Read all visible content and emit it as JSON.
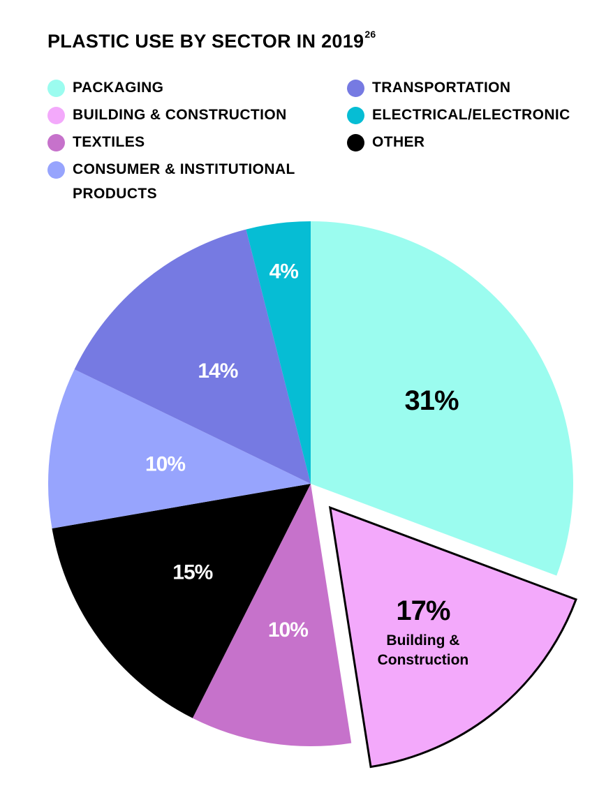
{
  "title": "PLASTIC USE BY SECTOR IN 2019",
  "title_footnote": "26",
  "legend_left": [
    {
      "label": "PACKAGING",
      "color": "#9bfcef"
    },
    {
      "label": "BUILDING & CONSTRUCTION",
      "color": "#f3a9fb"
    },
    {
      "label": "TEXTILES",
      "color": "#c672cb"
    },
    {
      "label": "CONSUMER & INSTITUTIONAL PRODUCTS",
      "color": "#97a4fd"
    }
  ],
  "legend_right": [
    {
      "label": "TRANSPORTATION",
      "color": "#767ae2"
    },
    {
      "label": "ELECTRICAL/ELECTRONIC",
      "color": "#06bdd4"
    },
    {
      "label": "OTHER",
      "color": "#000000"
    }
  ],
  "chart_data": {
    "type": "pie",
    "title": "PLASTIC USE BY SECTOR IN 2019",
    "slices": [
      {
        "name": "PACKAGING",
        "value": 31,
        "label": "31%",
        "color": "#9bfcef",
        "label_color": "#000000"
      },
      {
        "name": "BUILDING & CONSTRUCTION",
        "value": 17,
        "label": "17%",
        "sublabel": "Building & Construction",
        "color": "#f3a9fb",
        "label_color": "#000000",
        "exploded": true
      },
      {
        "name": "TEXTILES",
        "value": 10,
        "label": "10%",
        "color": "#c672cb",
        "label_color": "#ffffff"
      },
      {
        "name": "OTHER",
        "value": 15,
        "label": "15%",
        "color": "#000000",
        "label_color": "#ffffff"
      },
      {
        "name": "CONSUMER & INSTITUTIONAL PRODUCTS",
        "value": 10,
        "label": "10%",
        "color": "#97a4fd",
        "label_color": "#ffffff"
      },
      {
        "name": "TRANSPORTATION",
        "value": 14,
        "label": "14%",
        "color": "#767ae2",
        "label_color": "#ffffff"
      },
      {
        "name": "ELECTRICAL/ELECTRONIC",
        "value": 4,
        "label": "4%",
        "color": "#06bdd4",
        "label_color": "#ffffff"
      }
    ]
  }
}
